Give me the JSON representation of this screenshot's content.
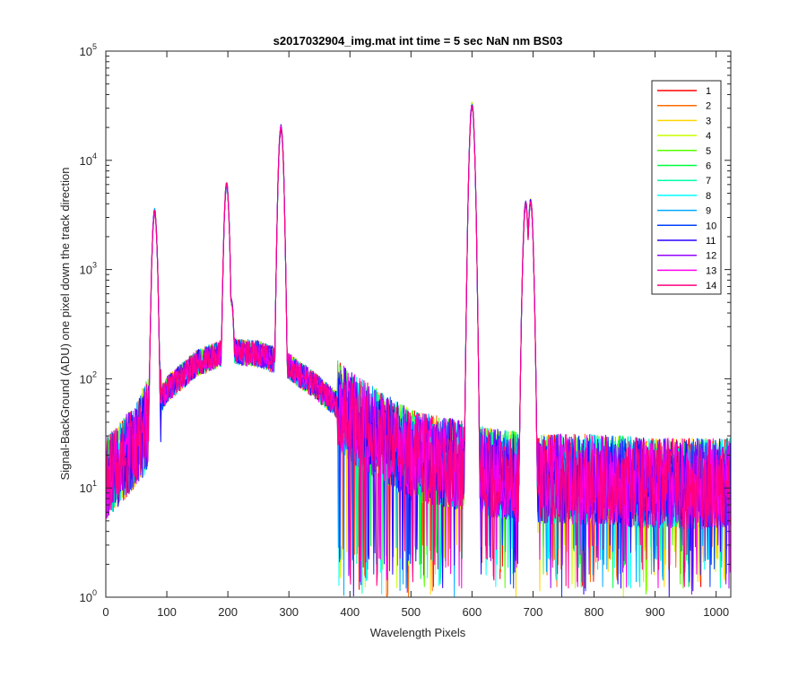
{
  "chart_data": {
    "type": "line",
    "title": "s2017032904_img.mat int time = 5 sec  NaN nm BS03",
    "xlabel": "Wavelength Pixels",
    "ylabel": "Signal-BackGround (ADU) one pixel down the track direction",
    "xlim": [
      0,
      1024
    ],
    "ylim": [
      1,
      100000
    ],
    "yscale": "log",
    "grid": false,
    "legend_position": "top-right",
    "x_ticks": [
      "0",
      "100",
      "200",
      "300",
      "400",
      "500",
      "600",
      "700",
      "800",
      "900",
      "1000"
    ],
    "x_tick_values": [
      0,
      100,
      200,
      300,
      400,
      500,
      600,
      700,
      800,
      900,
      1000
    ],
    "y_ticks": [
      {
        "base": "10",
        "exp": "0",
        "value": 1
      },
      {
        "base": "10",
        "exp": "1",
        "value": 10
      },
      {
        "base": "10",
        "exp": "2",
        "value": 100
      },
      {
        "base": "10",
        "exp": "3",
        "value": 1000
      },
      {
        "base": "10",
        "exp": "4",
        "value": 10000
      },
      {
        "base": "10",
        "exp": "5",
        "value": 100000
      }
    ],
    "peaks": [
      {
        "x": 80,
        "y": 3400
      },
      {
        "x": 198,
        "y": 6000
      },
      {
        "x": 206,
        "y": 500
      },
      {
        "x": 287,
        "y": 20000
      },
      {
        "x": 600,
        "y": 32000
      },
      {
        "x": 688,
        "y": 4000
      },
      {
        "x": 696,
        "y": 4200
      }
    ],
    "continuum": [
      {
        "x": 0,
        "y": 12
      },
      {
        "x": 50,
        "y": 25
      },
      {
        "x": 70,
        "y": 40
      },
      {
        "x": 100,
        "y": 80
      },
      {
        "x": 150,
        "y": 140
      },
      {
        "x": 200,
        "y": 180
      },
      {
        "x": 250,
        "y": 170
      },
      {
        "x": 300,
        "y": 130
      },
      {
        "x": 350,
        "y": 80
      },
      {
        "x": 400,
        "y": 45
      },
      {
        "x": 450,
        "y": 30
      },
      {
        "x": 500,
        "y": 20
      },
      {
        "x": 580,
        "y": 16
      },
      {
        "x": 620,
        "y": 14
      },
      {
        "x": 700,
        "y": 12
      },
      {
        "x": 800,
        "y": 12
      },
      {
        "x": 900,
        "y": 11
      },
      {
        "x": 1024,
        "y": 11
      }
    ],
    "series": [
      {
        "name": "1",
        "color": "#ff0000"
      },
      {
        "name": "2",
        "color": "#ff6a00"
      },
      {
        "name": "3",
        "color": "#ffd400"
      },
      {
        "name": "4",
        "color": "#c8ff00"
      },
      {
        "name": "5",
        "color": "#55ff00"
      },
      {
        "name": "6",
        "color": "#00ff40"
      },
      {
        "name": "7",
        "color": "#00ffaa"
      },
      {
        "name": "8",
        "color": "#00ffff"
      },
      {
        "name": "9",
        "color": "#00aaff"
      },
      {
        "name": "10",
        "color": "#0040ff"
      },
      {
        "name": "11",
        "color": "#2a00ff"
      },
      {
        "name": "12",
        "color": "#9500ff"
      },
      {
        "name": "13",
        "color": "#ff00ea"
      },
      {
        "name": "14",
        "color": "#ff0080"
      }
    ]
  }
}
